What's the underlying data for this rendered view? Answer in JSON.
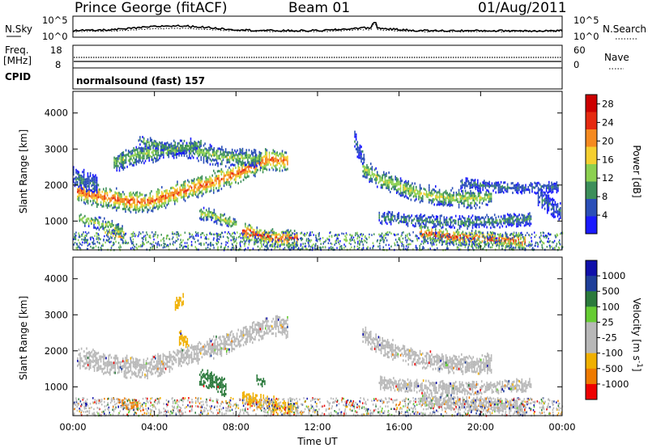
{
  "header": {
    "radar": "Prince George (fitACF)",
    "beam": "Beam 01",
    "date": "01/Aug/2011"
  },
  "strips": {
    "nsky_label": "N.Sky",
    "nsearch_label": "N.Search",
    "noise_ticks": [
      "10^5",
      "10^0"
    ],
    "freq_label": "Freq.",
    "freq_unit": "[MHz]",
    "freq_ticks": [
      "18",
      "8"
    ],
    "nave_label": "Nave",
    "nave_ticks": [
      "60",
      "0"
    ],
    "cpid_label": "CPID",
    "cpid_value": "normalsound (fast) 157"
  },
  "colors": {
    "power": [
      "#1a1aff",
      "#2b4fb8",
      "#3d8f5a",
      "#8cd050",
      "#f5cf30",
      "#f58a20",
      "#e52a10",
      "#cc0000"
    ],
    "velocity": [
      "#ee0000",
      "#ee7a00",
      "#f0b000",
      "#b8b8b8",
      "#b8b8b8",
      "#66cc33",
      "#2b7a3c",
      "#1f3f9a",
      "#1010aa"
    ],
    "ground_scatter": "#b8b8b8"
  },
  "chart_data": [
    {
      "type": "heatmap",
      "name": "power",
      "ylabel": "Slant Range [km]",
      "ylim": [
        200,
        4600
      ],
      "yticks": [
        "4000",
        "3000",
        "2000",
        "1000"
      ],
      "xlim_hours": [
        0,
        24
      ],
      "xticks": [
        "00:00",
        "04:00",
        "08:00",
        "12:00",
        "16:00",
        "20:00",
        "00:00"
      ],
      "colorbar_label": "Power [dB]",
      "colorbar_ticks": [
        "28",
        "24",
        "20",
        "16",
        "12",
        "8",
        "4"
      ],
      "colorbar_range": [
        0,
        30
      ],
      "bands": [
        {
          "h": [
            0.2,
            1.5,
            2.5,
            3.5,
            4.2,
            5.0,
            5.8,
            6.5,
            7.2,
            8.0,
            8.8,
            9.5,
            10.5
          ],
          "r": [
            1850,
            1700,
            1600,
            1550,
            1650,
            1800,
            1950,
            2050,
            2200,
            2350,
            2550,
            2750,
            2700
          ],
          "w": 260,
          "p": 25
        },
        {
          "h": [
            2.0,
            3.0,
            4.0,
            5.0,
            5.8,
            6.5,
            7.5,
            8.5,
            9.2
          ],
          "r": [
            2650,
            2850,
            2950,
            3050,
            3050,
            2900,
            2800,
            2800,
            2750
          ],
          "w": 230,
          "p": 14
        },
        {
          "h": [
            3.2,
            3.8,
            4.5,
            5.0,
            5.8,
            6.3
          ],
          "r": [
            3300,
            3200,
            3100,
            3000,
            3100,
            3200
          ],
          "w": 120,
          "p": 12
        },
        {
          "h": [
            0.3,
            1.0,
            1.8,
            2.5
          ],
          "r": [
            1100,
            1000,
            900,
            700
          ],
          "w": 150,
          "p": 16
        },
        {
          "h": [
            6.2,
            6.8,
            7.5,
            8.0
          ],
          "r": [
            1250,
            1200,
            1050,
            950
          ],
          "w": 160,
          "p": 16
        },
        {
          "h": [
            8.3,
            9.0,
            10.0,
            11.0
          ],
          "r": [
            750,
            650,
            550,
            550
          ],
          "w": 220,
          "p": 27
        },
        {
          "h": [
            14.2,
            15.0,
            16.0,
            17.0,
            18.0,
            19.5,
            20.5
          ],
          "r": [
            2500,
            2200,
            2000,
            1800,
            1700,
            1650,
            1700
          ],
          "w": 230,
          "p": 16
        },
        {
          "h": [
            15.0,
            17.0,
            19.0,
            21.0,
            22.5
          ],
          "r": [
            1150,
            1050,
            1000,
            1050,
            1100
          ],
          "w": 160,
          "p": 10
        },
        {
          "h": [
            17.0,
            18.5,
            20.0,
            21.5,
            22.2
          ],
          "r": [
            700,
            600,
            550,
            500,
            450
          ],
          "w": 190,
          "p": 27
        },
        {
          "h": [
            19.0,
            20.5,
            22.0,
            23.8
          ],
          "r": [
            2100,
            2000,
            1950,
            2000
          ],
          "w": 140,
          "p": 8
        },
        {
          "h": [
            13.8,
            14.0,
            14.3
          ],
          "r": [
            3250,
            3000,
            2800
          ],
          "w": 260,
          "p": 7
        },
        {
          "h": [
            0.0,
            0.5,
            1.2
          ],
          "r": [
            2300,
            2150,
            2050
          ],
          "w": 260,
          "p": 8
        },
        {
          "h": [
            22.8,
            23.3,
            23.9
          ],
          "r": [
            1700,
            1500,
            1300
          ],
          "w": 260,
          "p": 7
        },
        {
          "h": [
            1.5,
            2.0,
            2.5
          ],
          "r": [
            750,
            650,
            600
          ],
          "w": 100,
          "p": 24
        }
      ]
    },
    {
      "type": "heatmap",
      "name": "velocity",
      "ylabel": "Slant Range [km]",
      "ylim": [
        200,
        4600
      ],
      "yticks": [
        "4000",
        "3000",
        "2000",
        "1000"
      ],
      "xlim_hours": [
        0,
        24
      ],
      "xticks": [
        "00:00",
        "04:00",
        "08:00",
        "12:00",
        "16:00",
        "20:00",
        "00:00"
      ],
      "xlabel": "Time UT",
      "colorbar_label": "Velocity [m s",
      "colorbar_exponent": "-1",
      "colorbar_ticks": [
        "1000",
        "500",
        "100",
        "25",
        "-25",
        "-100",
        "-500",
        "-1000"
      ],
      "features": [
        {
          "h": [
            0.2,
            1.5,
            2.5,
            3.5,
            4.2,
            5.0,
            5.8,
            6.5,
            7.2,
            8.0,
            8.8,
            9.5,
            10.5
          ],
          "r": [
            1850,
            1700,
            1600,
            1550,
            1650,
            1800,
            1950,
            2050,
            2200,
            2350,
            2550,
            2750,
            2700
          ],
          "w": 260,
          "c": "#b8b8b8"
        },
        {
          "h": [
            14.2,
            15.0,
            16.0,
            17.0,
            18.0,
            19.5,
            20.5
          ],
          "r": [
            2500,
            2200,
            2000,
            1800,
            1700,
            1650,
            1700
          ],
          "w": 230,
          "c": "#b8b8b8"
        },
        {
          "h": [
            15.0,
            17.0,
            19.0,
            21.0,
            22.5
          ],
          "r": [
            1150,
            1050,
            1000,
            1050,
            1100
          ],
          "w": 160,
          "c": "#b8b8b8"
        },
        {
          "h": [
            17.0,
            18.5,
            20.0,
            21.5,
            22.2
          ],
          "r": [
            700,
            600,
            550,
            500,
            450
          ],
          "w": 190,
          "c": "#b8b8b8"
        },
        {
          "h": [
            6.2,
            6.6,
            7.0,
            7.5
          ],
          "r": [
            1300,
            1250,
            1150,
            1000
          ],
          "w": 220,
          "c": "#2b7a3c"
        },
        {
          "h": [
            8.3,
            9.0,
            10.0,
            11.0
          ],
          "r": [
            750,
            650,
            500,
            400
          ],
          "w": 200,
          "c": "#f0b000"
        },
        {
          "h": [
            2.2,
            2.7,
            3.2
          ],
          "r": [
            600,
            550,
            500
          ],
          "w": 120,
          "c": "#ee7a00"
        },
        {
          "h": [
            5.0,
            5.4
          ],
          "r": [
            3300,
            3500
          ],
          "w": 150,
          "c": "#f0b000"
        },
        {
          "h": [
            5.2,
            5.7
          ],
          "r": [
            2400,
            2200
          ],
          "w": 180,
          "c": "#f0b000"
        },
        {
          "h": [
            9.0,
            9.4
          ],
          "r": [
            1250,
            1150
          ],
          "w": 120,
          "c": "#2b7a3c"
        }
      ]
    }
  ]
}
